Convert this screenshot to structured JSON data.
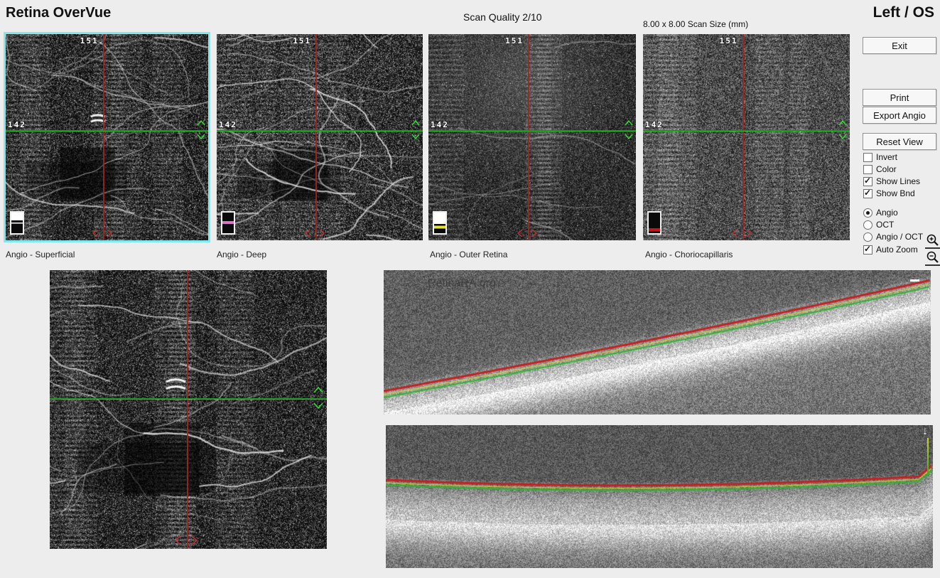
{
  "header": {
    "app_title": "Retina OverVue",
    "scan_quality": "Scan Quality 2/10",
    "scan_size": "8.00 x 8.00 Scan Size (mm)",
    "eye": "Left / OS"
  },
  "crosshair": {
    "v_index": "151",
    "h_index": "142"
  },
  "panels": [
    {
      "label": "Angio - Superficial"
    },
    {
      "label": "Angio - Deep"
    },
    {
      "label": "Angio - Outer Retina"
    },
    {
      "label": "Angio - Choriocapillaris"
    }
  ],
  "watermark": "RetinaRA.org",
  "sidebar": {
    "exit_label": "Exit",
    "print_label": "Print",
    "export_label": "Export Angio",
    "reset_label": "Reset View",
    "checkboxes": [
      {
        "label": "Invert",
        "checked": false
      },
      {
        "label": "Color",
        "checked": false
      },
      {
        "label": "Show Lines",
        "checked": true
      },
      {
        "label": "Show Bnd",
        "checked": true
      }
    ],
    "radios": [
      {
        "label": "Angio",
        "selected": true
      },
      {
        "label": "OCT",
        "selected": false
      },
      {
        "label": "Angio / OCT",
        "selected": false
      }
    ],
    "auto_zoom": {
      "label": "Auto Zoom",
      "checked": true
    }
  },
  "colors": {
    "selected_border": "#7fe9ee",
    "crosshair_vertical": "#a32424",
    "crosshair_horizontal": "#35df35",
    "segmentation_red": "#c32222",
    "segmentation_green": "#2eb52e",
    "segmentation_yellow": "#d7d728",
    "layer_deep_band": "#d678c8",
    "layer_outer_band": "#e6e23c",
    "layer_chorio_band": "#c01818"
  }
}
